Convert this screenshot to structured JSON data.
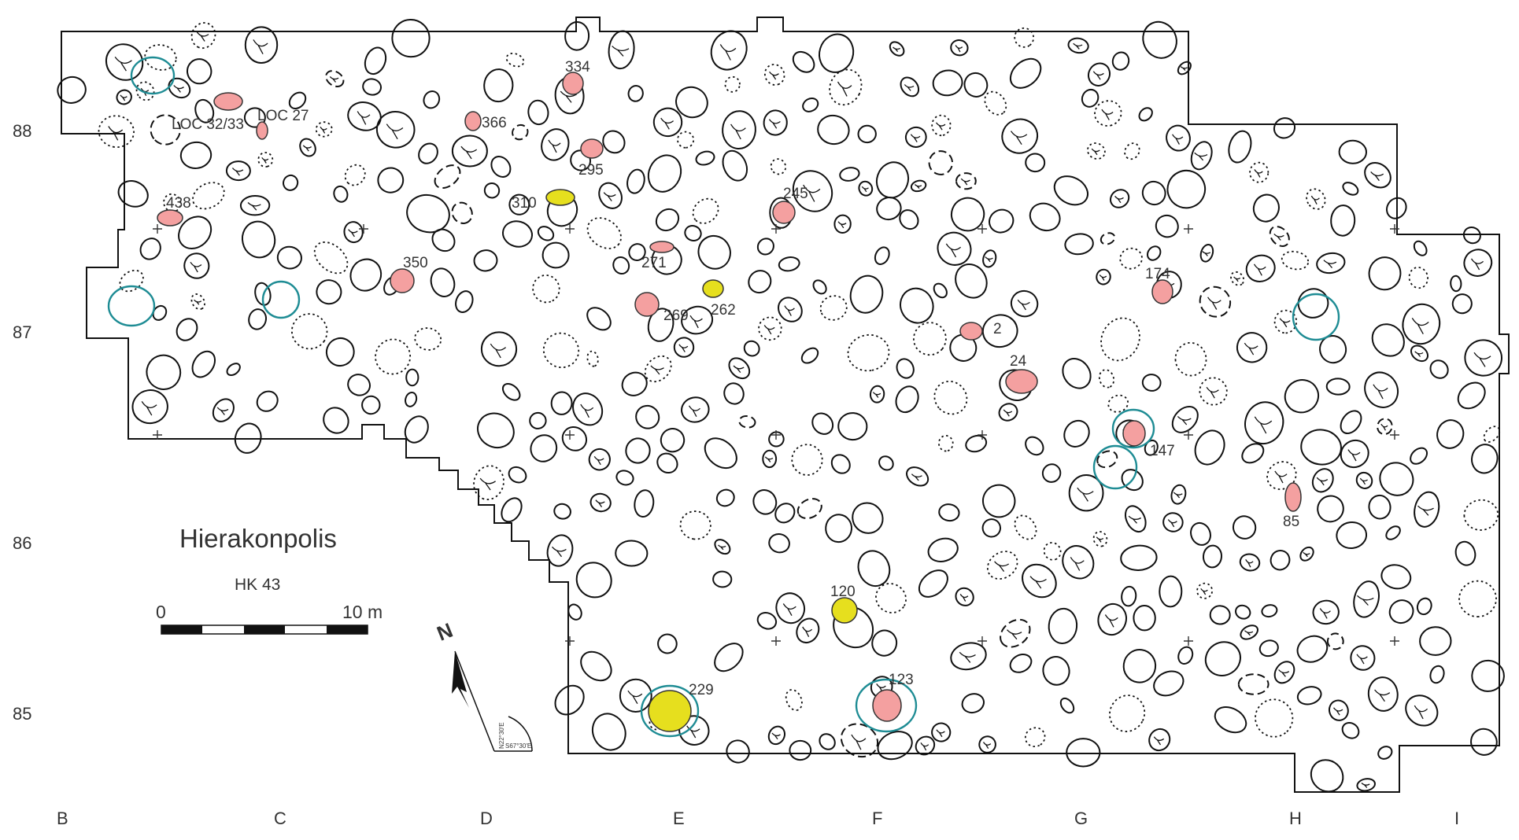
{
  "map": {
    "title": "Hierakonpolis",
    "subtitle": "HK 43",
    "scale_bar": {
      "start_label": "0",
      "end_label": "10 m"
    },
    "north_arrow": {
      "label": "N",
      "bearing_labels": [
        "N22°30'E",
        "S67°30'E"
      ]
    },
    "colors": {
      "outline": "#111111",
      "highlight_red": "#f4a0a0",
      "highlight_yellow": "#e6df1e",
      "circle_teal": "#1e8c94"
    },
    "grid_x_labels": [
      "B",
      "C",
      "D",
      "E",
      "F",
      "G",
      "H",
      "I"
    ],
    "grid_y_labels": [
      "88",
      "87",
      "86",
      "85"
    ],
    "tomb_labels": [
      {
        "text": "334",
        "highlight": "red"
      },
      {
        "text": "LOC 32/33",
        "highlight": "red"
      },
      {
        "text": "LOC 27",
        "highlight": "red"
      },
      {
        "text": "366",
        "highlight": "red"
      },
      {
        "text": "295",
        "highlight": "red"
      },
      {
        "text": "310",
        "highlight": "yellow"
      },
      {
        "text": "245",
        "highlight": "red"
      },
      {
        "text": "438",
        "highlight": "red"
      },
      {
        "text": "271",
        "highlight": "red"
      },
      {
        "text": "350",
        "highlight": "red"
      },
      {
        "text": "262",
        "highlight": "yellow"
      },
      {
        "text": "269",
        "highlight": "red"
      },
      {
        "text": "174",
        "highlight": "red"
      },
      {
        "text": "2",
        "highlight": "red"
      },
      {
        "text": "24",
        "highlight": "red"
      },
      {
        "text": "147",
        "highlight": "red"
      },
      {
        "text": "85",
        "highlight": "red"
      },
      {
        "text": "120",
        "highlight": "yellow"
      },
      {
        "text": "229",
        "highlight": "yellow"
      },
      {
        "text": "123",
        "highlight": "red"
      }
    ]
  }
}
